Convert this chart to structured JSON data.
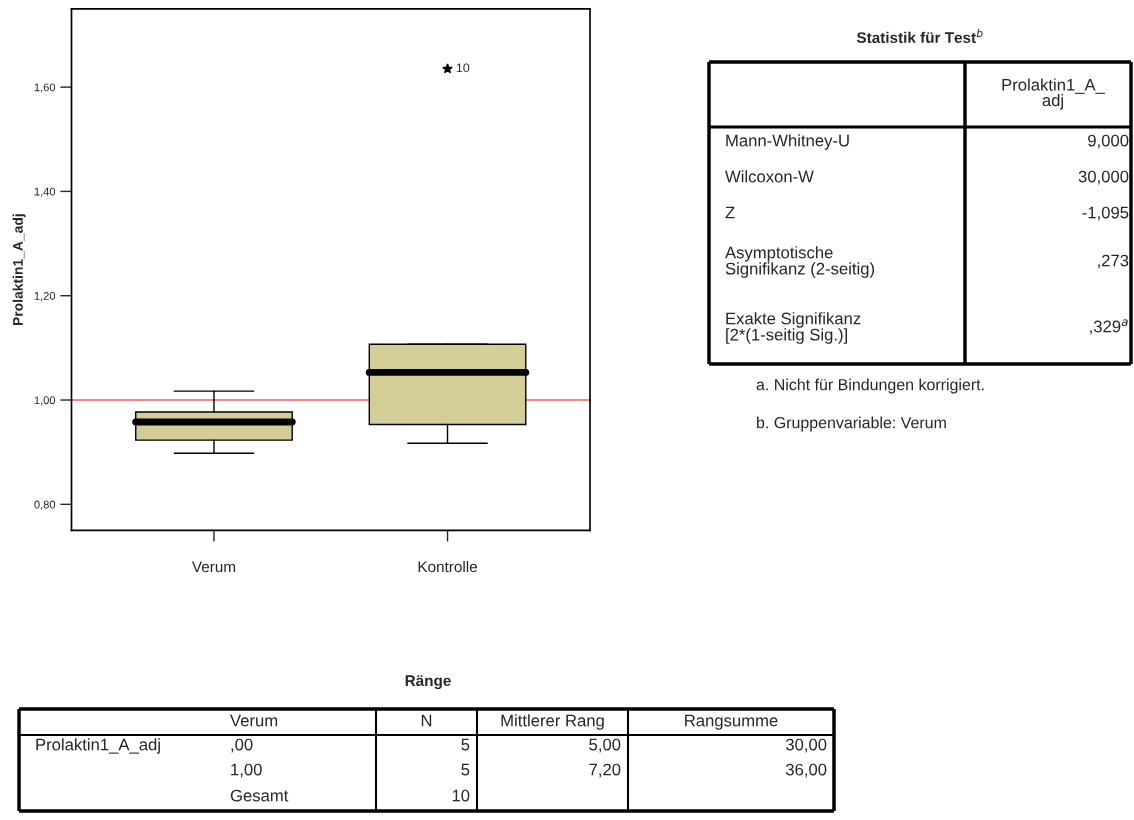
{
  "chart_data": [
    {
      "type": "box",
      "ylabel": "Prolaktin1_A_adj",
      "categories": [
        "Verum",
        "Kontrolle"
      ],
      "ylim": [
        0.75,
        1.75
      ],
      "yticks": [
        {
          "value": 0.8,
          "label": "0,80"
        },
        {
          "value": 1.0,
          "label": "1,00"
        },
        {
          "value": 1.2,
          "label": "1,20"
        },
        {
          "value": 1.4,
          "label": "1,40"
        },
        {
          "value": 1.6,
          "label": "1,60"
        }
      ],
      "grid": false,
      "marker": "star",
      "series": [
        {
          "color": "#d3ce97",
          "boxes": [
            {
              "low": 0.898,
              "q1": 0.923,
              "median": 0.958,
              "q3": 0.977,
              "high": 1.017
            },
            {
              "low": 0.917,
              "q1": 0.953,
              "median": 1.053,
              "q3": 1.107,
              "high": 1.107,
              "outliers": [
                1.635
              ]
            }
          ]
        }
      ],
      "ref_lines": [
        {
          "axis": "y",
          "value": 1.0,
          "color": "#f06060"
        }
      ],
      "annotations": [
        "10"
      ]
    },
    {
      "type": "other",
      "title": "Statistik für Test$^{b}$",
      "annotations": [
        "Prolaktin1_A_\nadj",
        "Mann-Whitney-U",
        "9,000",
        "Wilcoxon-W",
        "30,000",
        "Z",
        "-1,095",
        "Asymptotische\nSignifikanz (2-seitig)",
        ",273",
        "Exakte Signifikanz\n[2*(1-seitig Sig.)]",
        ",329$^{a}$",
        "a. Nicht für Bindungen korrigiert.",
        "b. Gruppenvariable: Verum"
      ]
    },
    {
      "type": "other",
      "title": "Ränge",
      "annotations": [
        "Verum",
        "N",
        "Mittlerer Rang",
        "Rangsumme",
        "Prolaktin1_A_adj",
        ",00",
        "5",
        "5,00",
        "30,00",
        "1,00",
        "5",
        "7,20",
        "36,00",
        "Gesamt",
        "10"
      ]
    }
  ]
}
